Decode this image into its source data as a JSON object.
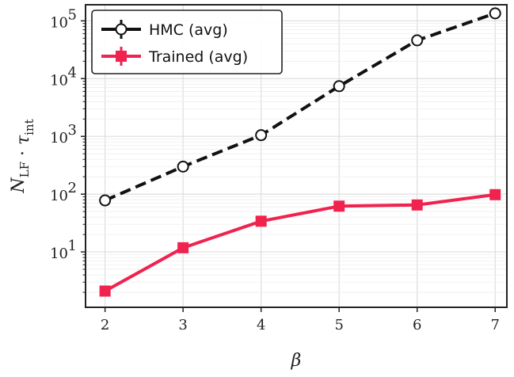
{
  "chart_data": {
    "type": "line",
    "xlabel": "β",
    "ylabel": "N_LF · τ_int",
    "y_scale": "log",
    "xlim": [
      1.75,
      7.15
    ],
    "ylim": [
      1.1,
      190000
    ],
    "x": [
      2,
      3,
      4,
      5,
      6,
      7
    ],
    "x_ticks": [
      "2",
      "3",
      "4",
      "5",
      "6",
      "7"
    ],
    "y_ticks": [
      {
        "value": 10,
        "base": "10",
        "exp": "1"
      },
      {
        "value": 100,
        "base": "10",
        "exp": "2"
      },
      {
        "value": 1000,
        "base": "10",
        "exp": "3"
      },
      {
        "value": 10000,
        "base": "10",
        "exp": "4"
      },
      {
        "value": 100000,
        "base": "10",
        "exp": "5"
      }
    ],
    "grid": true,
    "legend_position": "top-left",
    "series": [
      {
        "name": "HMC (avg)",
        "values": [
          78,
          300,
          1050,
          7400,
          46000,
          135000
        ],
        "color": "#111111",
        "line_style": "dashed",
        "marker": "open-circle"
      },
      {
        "name": "Trained (avg)",
        "values": [
          2.1,
          11.8,
          34,
          62,
          65,
          98
        ],
        "color": "#f0224e",
        "line_style": "solid",
        "marker": "square"
      }
    ]
  }
}
